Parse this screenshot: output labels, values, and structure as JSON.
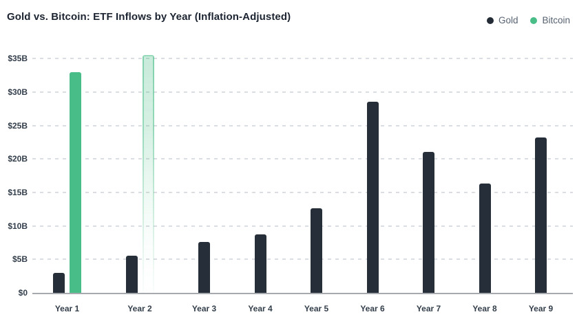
{
  "header": {
    "title": "Gold vs. Bitcoin: ETF Inflows by Year (Inflation-Adjusted)"
  },
  "legend": {
    "items": [
      {
        "label": "Gold",
        "color": "#232b36"
      },
      {
        "label": "Bitcoin",
        "color": "#49bd87"
      }
    ]
  },
  "chart_data": {
    "type": "bar",
    "title": "Gold vs. Bitcoin: ETF Inflows by Year (Inflation-Adjusted)",
    "categories": [
      "Year 1",
      "Year 2",
      "Year 3",
      "Year 4",
      "Year 5",
      "Year 6",
      "Year 7",
      "Year 8",
      "Year 9"
    ],
    "series": [
      {
        "name": "Gold",
        "color": "#262e3a",
        "values": [
          3,
          5.5,
          7.6,
          8.7,
          12.6,
          28.5,
          21,
          16.3,
          23.2
        ]
      },
      {
        "name": "Bitcoin",
        "color": "#49bd87",
        "values": [
          33,
          35.5,
          null,
          null,
          null,
          null,
          null,
          null,
          null
        ],
        "faded_value_indexes": [
          1
        ]
      }
    ],
    "xlabel": "",
    "ylabel": "",
    "ylim": [
      0,
      35
    ],
    "yticks": [
      0,
      5,
      10,
      15,
      20,
      25,
      30,
      35
    ],
    "ytick_labels": [
      "$0",
      "$5B",
      "$10B",
      "$15B",
      "$20B",
      "$25B",
      "$30B",
      "$35B"
    ],
    "grid": "dashed-horizontal",
    "legend_position": "top-right",
    "axis_line_color": "#a6aaaf",
    "gridline_color": "#dadde1",
    "background": "#ffffff"
  }
}
